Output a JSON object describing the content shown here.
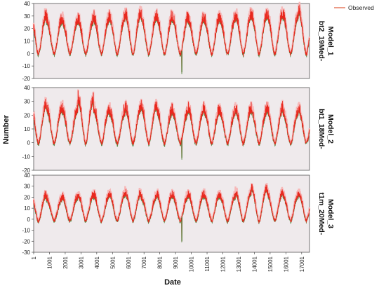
{
  "chart_data": {
    "type": "line",
    "xlabel": "Date",
    "ylabel": "Number",
    "legend": {
      "label": "Observed",
      "position": "top-right"
    },
    "colors": {
      "observed_line": "#e8281e",
      "observed_band": "#f6b8b8",
      "noise_trace": "#3f7a2a",
      "panel_bg": "#efeaec",
      "legend_line": "#e05a3a"
    },
    "x_range": [
      1,
      17500
    ],
    "x_ticks": [
      1,
      1001,
      2001,
      3001,
      4001,
      5001,
      6001,
      7001,
      8001,
      9001,
      10001,
      11001,
      12001,
      13001,
      14001,
      15001,
      16001,
      17001
    ],
    "panels": [
      {
        "label_line1": "bt2_19Med-",
        "label_line2": "Model_1",
        "ylim": [
          -20,
          40
        ],
        "yticks": [
          -20,
          -10,
          0,
          10,
          20,
          30,
          40
        ],
        "baseline": 1,
        "amplitude": 28,
        "extra_peak": 6,
        "dip": {
          "x": 9400,
          "y": -15
        },
        "annual_peaks_approx": [
          33,
          29,
          28,
          29,
          30,
          31,
          34,
          32,
          31,
          30,
          29,
          30,
          30,
          33,
          33,
          34,
          33,
          38
        ]
      },
      {
        "label_line1": "bt1_18Med-",
        "label_line2": "Model_2",
        "ylim": [
          -20,
          40
        ],
        "yticks": [
          -20,
          -10,
          0,
          10,
          20,
          30,
          40
        ],
        "baseline": 1,
        "amplitude": 24,
        "extra_peak": 5,
        "dip": {
          "x": 9400,
          "y": -11
        },
        "annual_peaks_approx": [
          30,
          27,
          26,
          35,
          26,
          24,
          27,
          29,
          25,
          24,
          26,
          25,
          24,
          26,
          25,
          26,
          24,
          26
        ]
      },
      {
        "label_line1": "t1m_20Med-",
        "label_line2": "Model_3",
        "ylim": [
          -30,
          40
        ],
        "yticks": [
          -30,
          -20,
          -10,
          0,
          10,
          20,
          30,
          40
        ],
        "baseline": 0,
        "amplitude": 20,
        "extra_peak": 4,
        "dip": {
          "x": 9400,
          "y": -20
        },
        "annual_peaks_approx": [
          24,
          20,
          22,
          24,
          23,
          25,
          26,
          22,
          24,
          23,
          24,
          24,
          23,
          26,
          31,
          26,
          24,
          26
        ]
      }
    ]
  }
}
